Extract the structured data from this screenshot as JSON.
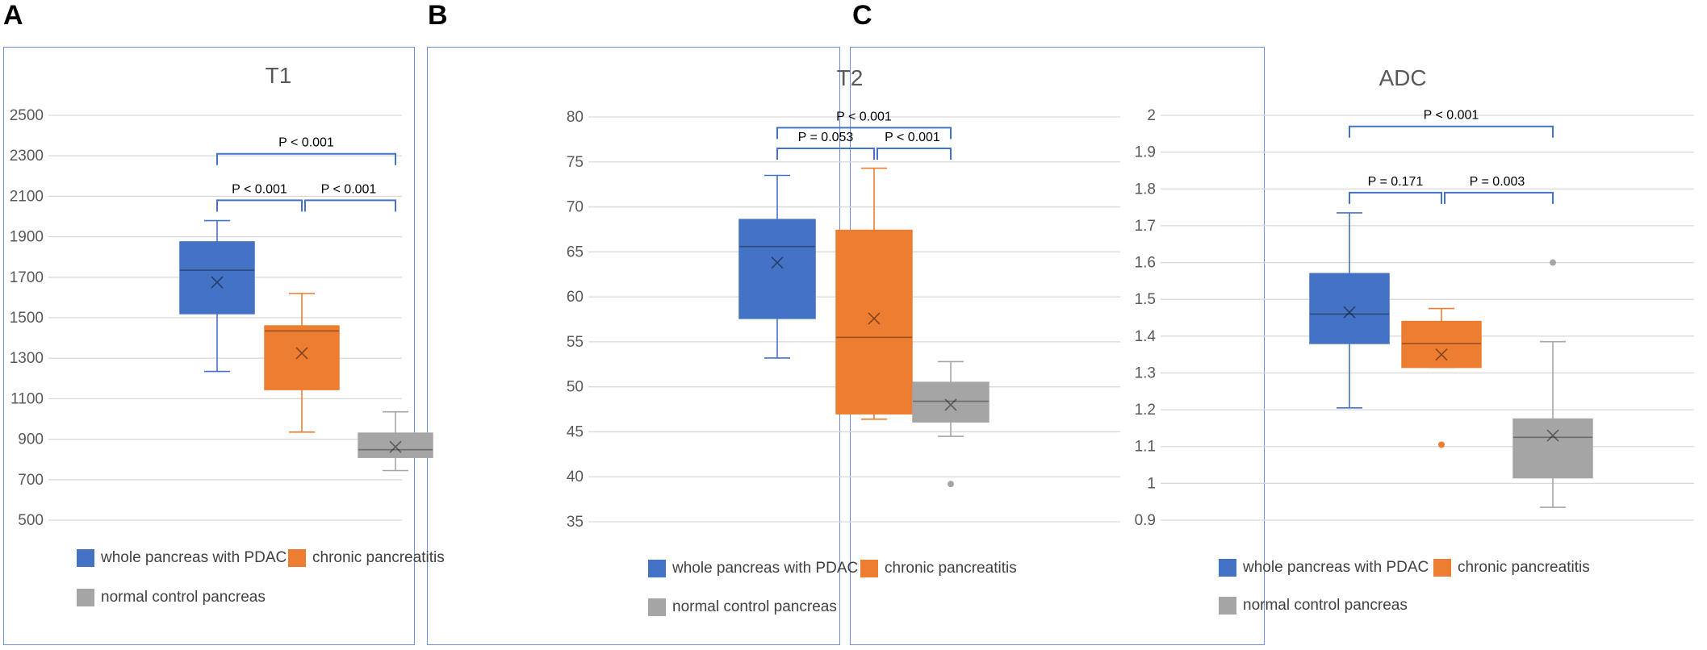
{
  "panel_letters": [
    "A",
    "B",
    "C"
  ],
  "legend": {
    "pdac": "whole pancreas with PDAC",
    "cp": "chronic pancreatitis",
    "normal": "normal control pancreas"
  },
  "colors": {
    "pdac": "#4472C4",
    "cp": "#ED7D31",
    "normal": "#A5A5A5",
    "bracket": "#4472C4",
    "grid": "#D9D9D9",
    "text": "#595959"
  },
  "chart_data": [
    {
      "type": "box",
      "title": "T1",
      "ylim": [
        500,
        2500
      ],
      "yticks": [
        500,
        700,
        900,
        1100,
        1300,
        1500,
        1700,
        1900,
        2100,
        2300,
        2500
      ],
      "ytick_labels": [
        "500",
        "700",
        "900",
        "1100",
        "1300",
        "1500",
        "1700",
        "1900",
        "2100",
        "2300",
        "2500"
      ],
      "series": [
        {
          "name": "whole pancreas with PDAC",
          "min": 1235,
          "q1": 1520,
          "median": 1735,
          "q3": 1875,
          "max": 1980,
          "mean": 1675,
          "outliers": []
        },
        {
          "name": "chronic pancreatitis",
          "min": 935,
          "q1": 1145,
          "median": 1435,
          "q3": 1460,
          "max": 1620,
          "mean": 1325,
          "outliers": []
        },
        {
          "name": "normal control pancreas",
          "min": 745,
          "q1": 810,
          "median": 848,
          "q3": 930,
          "max": 1035,
          "mean": 862,
          "outliers": []
        }
      ],
      "comparisons": [
        {
          "label": "P < 0.001",
          "from": 0,
          "to": 1,
          "y": 2080
        },
        {
          "label": "P < 0.001",
          "from": 1,
          "to": 2,
          "y": 2080
        },
        {
          "label": "P < 0.001",
          "from": 0,
          "to": 2,
          "y": 2310
        }
      ]
    },
    {
      "type": "box",
      "title": "T2",
      "ylim": [
        35,
        80
      ],
      "yticks": [
        35,
        40,
        45,
        50,
        55,
        60,
        65,
        70,
        75,
        80
      ],
      "ytick_labels": [
        "35",
        "40",
        "45",
        "50",
        "55",
        "60",
        "65",
        "70",
        "75",
        "80"
      ],
      "series": [
        {
          "name": "whole pancreas with PDAC",
          "min": 53.2,
          "q1": 57.6,
          "median": 65.6,
          "q3": 68.6,
          "max": 73.5,
          "mean": 63.8,
          "outliers": []
        },
        {
          "name": "chronic pancreatitis",
          "min": 46.4,
          "q1": 47.0,
          "median": 55.5,
          "q3": 67.4,
          "max": 74.3,
          "mean": 57.6,
          "outliers": []
        },
        {
          "name": "normal control pancreas",
          "min": 44.5,
          "q1": 46.1,
          "median": 48.4,
          "q3": 50.5,
          "max": 52.8,
          "mean": 48.0,
          "outliers": [
            39.2
          ]
        }
      ],
      "comparisons": [
        {
          "label": "P = 0.053",
          "from": 0,
          "to": 1,
          "y": 76.5
        },
        {
          "label": "P < 0.001",
          "from": 1,
          "to": 2,
          "y": 76.5
        },
        {
          "label": "P < 0.001",
          "from": 0,
          "to": 2,
          "y": 78.8
        }
      ]
    },
    {
      "type": "box",
      "title": "ADC",
      "ylim": [
        0.9,
        2.0
      ],
      "yticks": [
        0.9,
        1.0,
        1.1,
        1.2,
        1.3,
        1.4,
        1.5,
        1.6,
        1.7,
        1.8,
        1.9,
        2.0
      ],
      "ytick_labels": [
        "0.9",
        "1",
        "1.1",
        "1.2",
        "1.3",
        "1.4",
        "1.5",
        "1.6",
        "1.7",
        "1.8",
        "1.9",
        "2"
      ],
      "series": [
        {
          "name": "whole pancreas with PDAC",
          "min": 1.205,
          "q1": 1.38,
          "median": 1.46,
          "q3": 1.57,
          "max": 1.735,
          "mean": 1.465,
          "outliers": []
        },
        {
          "name": "chronic pancreatitis",
          "min": 1.315,
          "q1": 1.315,
          "median": 1.38,
          "q3": 1.44,
          "max": 1.475,
          "mean": 1.35,
          "outliers": [
            1.105
          ]
        },
        {
          "name": "normal control pancreas",
          "min": 0.935,
          "q1": 1.015,
          "median": 1.125,
          "q3": 1.175,
          "max": 1.385,
          "mean": 1.13,
          "outliers": [
            1.6
          ]
        }
      ],
      "comparisons": [
        {
          "label": "P = 0.171",
          "from": 0,
          "to": 1,
          "y": 1.79
        },
        {
          "label": "P = 0.003",
          "from": 1,
          "to": 2,
          "y": 1.79
        },
        {
          "label": "P < 0.001",
          "from": 0,
          "to": 2,
          "y": 1.97
        }
      ]
    }
  ]
}
